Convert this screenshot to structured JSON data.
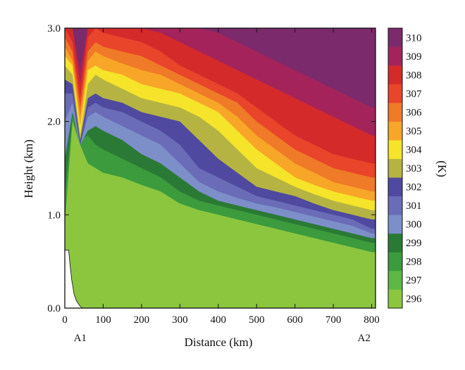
{
  "chart_data": {
    "type": "heatmap",
    "title": "",
    "xlabel": "Distance (km)",
    "ylabel": "Height (km)",
    "xlim": [
      0,
      810
    ],
    "ylim": [
      0.0,
      3.0
    ],
    "x_ticks": [
      0,
      100,
      200,
      300,
      400,
      500,
      600,
      700,
      800
    ],
    "y_ticks": [
      0.0,
      1.0,
      2.0,
      3.0
    ],
    "x_tick_labels": [
      "0",
      "100",
      "200",
      "300",
      "400",
      "500",
      "600",
      "700",
      "800"
    ],
    "y_tick_labels": [
      "0.0",
      "1.0",
      "2.0",
      "3.0"
    ],
    "endpoint_labels": [
      {
        "text": "A1",
        "x": 40
      },
      {
        "text": "A2",
        "x": 780
      }
    ],
    "colorbar": {
      "unit_label": "(K)",
      "levels": [
        296,
        297,
        298,
        299,
        300,
        301,
        302,
        303,
        304,
        305,
        306,
        307,
        308,
        309,
        310
      ],
      "level_labels": [
        "296",
        "297",
        "298",
        "299",
        "300",
        "301",
        "302",
        "303",
        "304",
        "305",
        "306",
        "307",
        "308",
        "309",
        "310"
      ],
      "colors": [
        "#8cc63f",
        "#5fb844",
        "#3c9b3c",
        "#2a7a35",
        "#7d8fc9",
        "#6a6cb8",
        "#4f49a0",
        "#b5b443",
        "#f5e42a",
        "#f7a628",
        "#ef7a27",
        "#e8452a",
        "#d42a2a",
        "#a4235a",
        "#7b2a6b"
      ]
    },
    "distance_km": [
      0,
      20,
      40,
      60,
      80,
      100,
      150,
      200,
      250,
      300,
      350,
      400,
      450,
      500,
      550,
      600,
      650,
      700,
      750,
      800
    ],
    "isentrope_heights_km": [
      {
        "theta": 297,
        "heights": [
          0.9,
          2.0,
          1.75,
          1.55,
          1.5,
          1.45,
          1.4,
          1.32,
          1.25,
          1.12,
          1.05,
          1.0,
          0.95,
          0.9,
          0.85,
          0.8,
          0.75,
          0.7,
          0.65,
          0.6
        ]
      },
      {
        "theta": 298,
        "heights": [
          1.2,
          2.05,
          1.8,
          1.85,
          1.75,
          1.7,
          1.6,
          1.5,
          1.4,
          1.25,
          1.15,
          1.1,
          1.05,
          1.0,
          0.95,
          0.9,
          0.85,
          0.8,
          0.75,
          0.7
        ]
      },
      {
        "theta": 299,
        "heights": [
          1.6,
          2.1,
          1.75,
          1.9,
          1.95,
          1.9,
          1.8,
          1.65,
          1.55,
          1.4,
          1.25,
          1.15,
          1.1,
          1.05,
          1.0,
          0.95,
          0.9,
          0.85,
          0.8,
          0.75
        ]
      },
      {
        "theta": 300,
        "heights": [
          2.0,
          2.2,
          1.75,
          2.05,
          2.1,
          2.05,
          1.95,
          1.85,
          1.75,
          1.55,
          1.35,
          1.25,
          1.18,
          1.12,
          1.08,
          1.03,
          0.98,
          0.93,
          0.88,
          0.8
        ]
      },
      {
        "theta": 301,
        "heights": [
          2.3,
          2.3,
          1.75,
          2.15,
          2.2,
          2.15,
          2.1,
          2.0,
          1.9,
          1.75,
          1.5,
          1.4,
          1.3,
          1.2,
          1.15,
          1.1,
          1.05,
          1.0,
          0.95,
          0.85
        ]
      },
      {
        "theta": 302,
        "heights": [
          2.45,
          2.4,
          1.8,
          2.25,
          2.3,
          2.25,
          2.2,
          2.1,
          2.05,
          2.0,
          1.8,
          1.6,
          1.45,
          1.3,
          1.25,
          1.2,
          1.12,
          1.05,
          1.0,
          0.95
        ]
      },
      {
        "theta": 303,
        "heights": [
          2.6,
          2.5,
          1.85,
          2.4,
          2.5,
          2.45,
          2.35,
          2.25,
          2.2,
          2.15,
          2.05,
          1.9,
          1.7,
          1.5,
          1.4,
          1.3,
          1.22,
          1.15,
          1.1,
          1.05
        ]
      },
      {
        "theta": 304,
        "heights": [
          2.7,
          2.6,
          1.95,
          2.55,
          2.6,
          2.55,
          2.5,
          2.4,
          2.35,
          2.3,
          2.2,
          2.1,
          1.9,
          1.7,
          1.55,
          1.4,
          1.32,
          1.25,
          1.2,
          1.15
        ]
      },
      {
        "theta": 305,
        "heights": [
          2.8,
          2.65,
          2.05,
          2.65,
          2.75,
          2.7,
          2.62,
          2.55,
          2.5,
          2.4,
          2.3,
          2.2,
          2.05,
          1.85,
          1.7,
          1.55,
          1.45,
          1.35,
          1.3,
          1.25
        ]
      },
      {
        "theta": 306,
        "heights": [
          2.9,
          2.75,
          2.15,
          2.75,
          2.85,
          2.8,
          2.75,
          2.7,
          2.6,
          2.5,
          2.4,
          2.3,
          2.2,
          2.0,
          1.85,
          1.7,
          1.6,
          1.5,
          1.45,
          1.4
        ]
      },
      {
        "theta": 307,
        "heights": [
          3.0,
          2.85,
          2.25,
          2.9,
          3.0,
          2.95,
          2.9,
          2.85,
          2.75,
          2.6,
          2.5,
          2.4,
          2.3,
          2.15,
          2.0,
          1.85,
          1.75,
          1.65,
          1.6,
          1.55
        ]
      },
      {
        "theta": 308,
        "heights": [
          3.0,
          3.0,
          2.4,
          3.0,
          3.0,
          3.0,
          3.0,
          3.0,
          2.95,
          2.85,
          2.75,
          2.65,
          2.55,
          2.45,
          2.35,
          2.25,
          2.15,
          2.05,
          1.95,
          1.85
        ]
      },
      {
        "theta": 309,
        "heights": [
          3.0,
          3.0,
          2.55,
          3.0,
          3.0,
          3.0,
          3.0,
          3.0,
          3.0,
          3.0,
          3.0,
          2.95,
          2.85,
          2.75,
          2.65,
          2.55,
          2.45,
          2.35,
          2.25,
          2.15
        ]
      }
    ],
    "terrain_height_km": [
      {
        "x": 0,
        "h": 0.62
      },
      {
        "x": 10,
        "h": 0.62
      },
      {
        "x": 14,
        "h": 0.45
      },
      {
        "x": 18,
        "h": 0.3
      },
      {
        "x": 24,
        "h": 0.15
      },
      {
        "x": 30,
        "h": 0.08
      },
      {
        "x": 38,
        "h": 0.03
      },
      {
        "x": 45,
        "h": 0.0
      }
    ]
  }
}
